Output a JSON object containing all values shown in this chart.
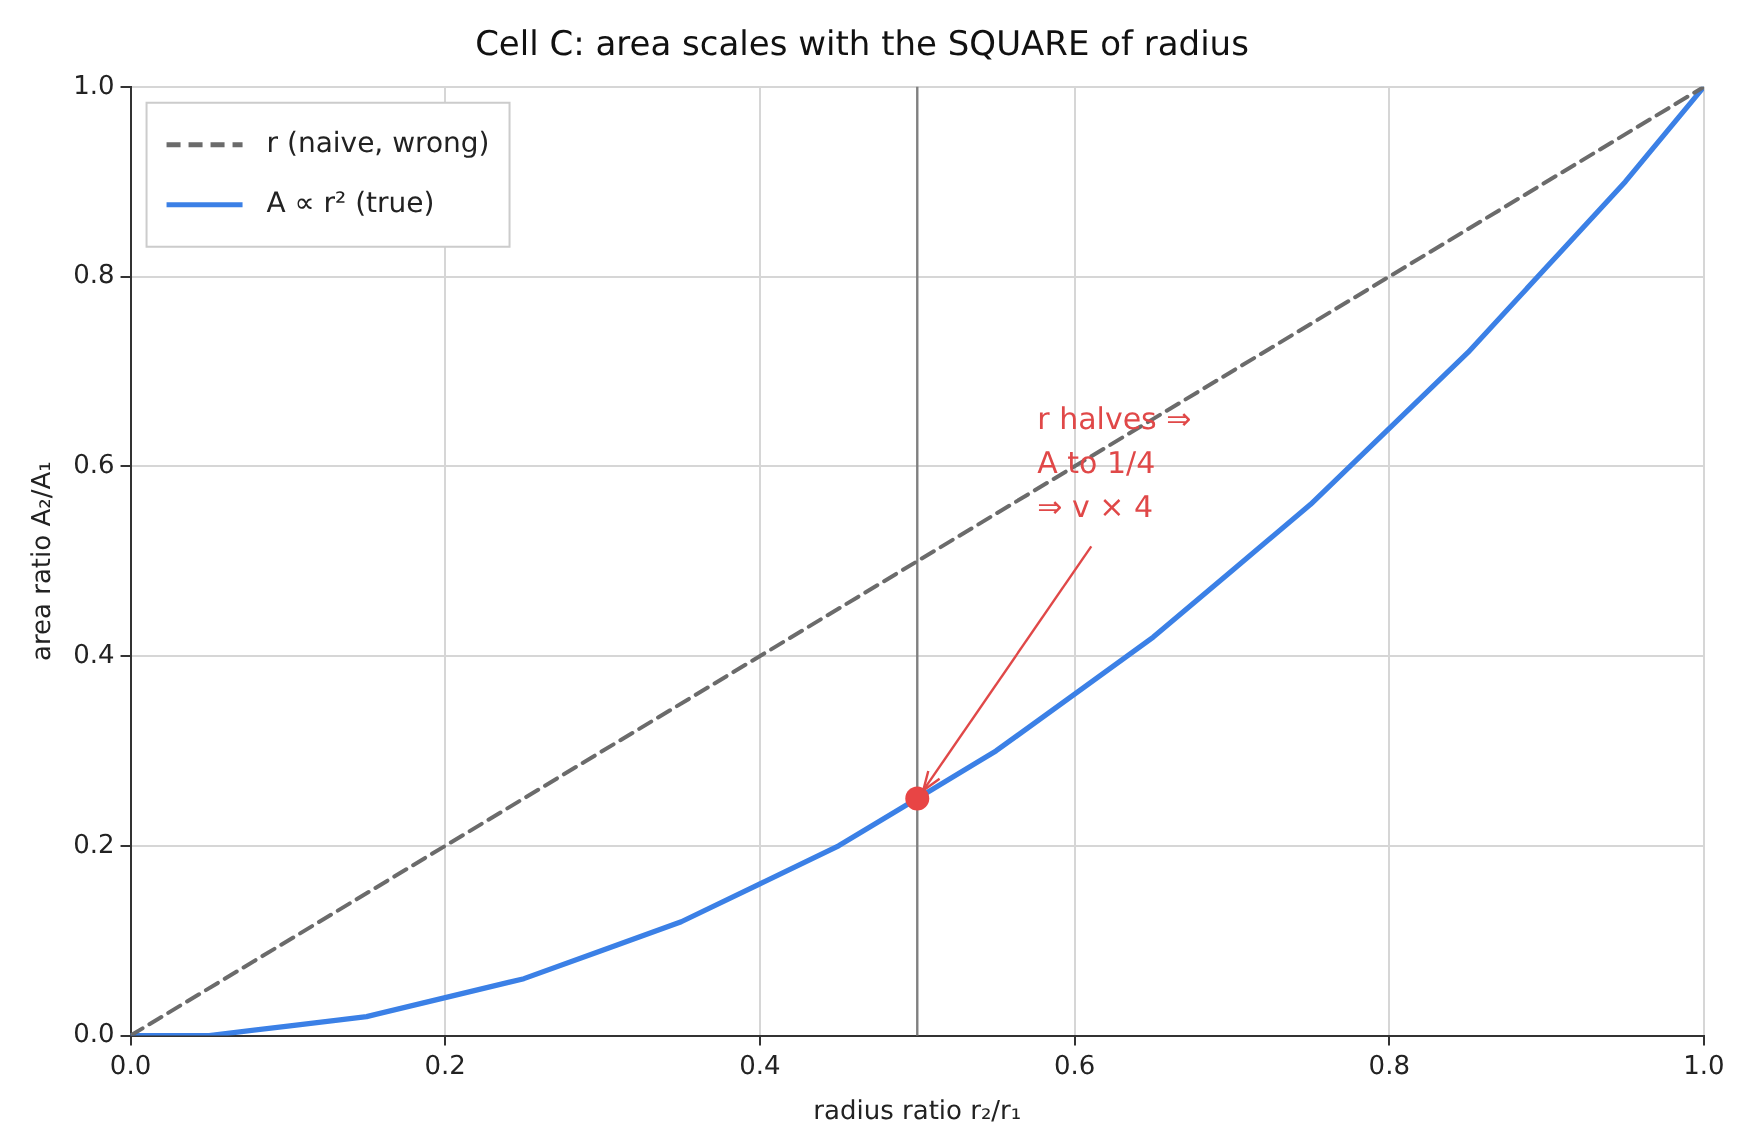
{
  "chart_data": {
    "type": "line",
    "title": "Cell C: area scales with the SQUARE of radius",
    "xlabel": "radius ratio r₂/r₁",
    "ylabel": "area ratio A₂/A₁",
    "series": [
      {
        "name": "r (naive, wrong)",
        "color": "#6b6b6b",
        "line_style": "dashed",
        "marker": "none",
        "x": [
          0,
          1
        ],
        "values": [
          0,
          1
        ]
      },
      {
        "name": "A ∝ r² (true)",
        "color": "#3b80e6",
        "line_style": "solid",
        "marker": "none",
        "x": [
          0,
          0.05,
          0.1,
          0.15,
          0.2,
          0.25,
          0.3,
          0.35,
          0.4,
          0.45,
          0.5,
          0.55,
          0.6,
          0.65,
          0.7,
          0.75,
          0.8,
          0.85,
          0.9,
          0.95,
          1
        ],
        "values": [
          0,
          0,
          0.01,
          0.02,
          0.04,
          0.06,
          0.09,
          0.12,
          0.16,
          0.2,
          0.25,
          0.3,
          0.36,
          0.42,
          0.49,
          0.56,
          0.64,
          0.72,
          0.81,
          0.9,
          1
        ]
      },
      {
        "type": "scatter",
        "color": "#e84545",
        "marker": "circle",
        "x": [
          0.5
        ],
        "values": [
          0.25
        ]
      }
    ],
    "xlim": [
      0,
      1
    ],
    "ylim": [
      0,
      1
    ],
    "xticks": [
      {
        "value": 0,
        "label": "0.0"
      },
      {
        "value": 0.2,
        "label": "0.2"
      },
      {
        "value": 0.4,
        "label": "0.4"
      },
      {
        "value": 0.6,
        "label": "0.6"
      },
      {
        "value": 0.8,
        "label": "0.8"
      },
      {
        "value": 1,
        "label": "1.0"
      }
    ],
    "yticks": [
      {
        "value": 0,
        "label": "0.0"
      },
      {
        "value": 0.2,
        "label": "0.2"
      },
      {
        "value": 0.4,
        "label": "0.4"
      },
      {
        "value": 0.6,
        "label": "0.6"
      },
      {
        "value": 0.8,
        "label": "0.8"
      },
      {
        "value": 1,
        "label": "1.0"
      }
    ],
    "ref_lines": [
      {
        "axis": "x",
        "value": 0.5,
        "color": "#808080"
      }
    ],
    "annotations": [
      {
        "text": "r halves ⇒\nA to 1/4\n⇒ v × 4",
        "x": 0.5,
        "y": 0.25
      }
    ],
    "grid": true,
    "legend": "top left"
  }
}
